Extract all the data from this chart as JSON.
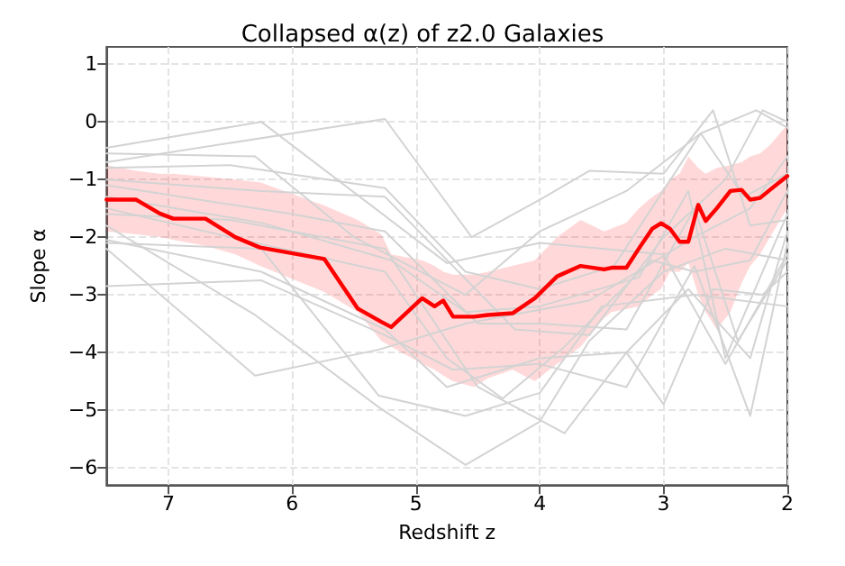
{
  "chart_data": {
    "type": "line",
    "title": "Collapsed α(z) of z2.0 Galaxies",
    "xlabel": "Redshift z",
    "ylabel": "Slope α",
    "xlim": [
      7.5,
      2
    ],
    "xticks": [
      7,
      6,
      5,
      4,
      3,
      2
    ],
    "ylim": [
      -6.3,
      1.3
    ],
    "yticks": [
      1,
      0,
      -1,
      -2,
      -3,
      -4,
      -5,
      -6
    ],
    "grid": true,
    "marker": "none",
    "line_style": "solid",
    "series": [
      {
        "color": "#d3d3d3",
        "x": [
          7.5,
          6.25,
          4.75,
          4.0,
          3.0,
          2.5,
          2.0
        ],
        "values": [
          -0.45,
          0,
          -2.45,
          -2.1,
          -2.3,
          -4.2,
          -2.3
        ]
      },
      {
        "color": "#d3d3d3",
        "x": [
          7.5,
          5.25,
          4.55,
          4.0,
          3.6,
          3.0,
          2.6,
          2.3,
          2.0
        ],
        "values": [
          -0.7,
          0.05,
          -2.0,
          -1.35,
          -0.85,
          -0.9,
          0.2,
          -1.8,
          -1.7
        ]
      },
      {
        "color": "#d3d3d3",
        "x": [
          7.5,
          6.3,
          5.5,
          4.6,
          4.0,
          3.3,
          2.7,
          2.35,
          2.0
        ],
        "values": [
          -0.55,
          -0.6,
          -2.0,
          -3.0,
          -1.9,
          -1.2,
          -0.2,
          -1.3,
          -0.9
        ]
      },
      {
        "color": "#d3d3d3",
        "x": [
          7.5,
          6.5,
          5.25,
          4.6,
          4.0,
          3.4,
          2.7,
          2.25,
          2.0
        ],
        "values": [
          -0.8,
          -0.75,
          -1.15,
          -2.6,
          -2.9,
          -2.5,
          -0.2,
          0.2,
          -0.1
        ]
      },
      {
        "color": "#d3d3d3",
        "x": [
          7.5,
          6.25,
          5.25,
          4.2,
          3.6,
          3.0,
          2.5,
          2.2,
          2.0
        ],
        "values": [
          -1.0,
          -1.2,
          -1.3,
          -3.6,
          -3.7,
          -2.0,
          -1.0,
          0.2,
          0
        ]
      },
      {
        "color": "#d3d3d3",
        "x": [
          7.5,
          6.0,
          5.25,
          4.5,
          4.0,
          3.3,
          2.75,
          2.4,
          2.0
        ],
        "values": [
          -1.1,
          -1.6,
          -1.9,
          -3.5,
          -3.5,
          -3.6,
          -1.5,
          -3.8,
          -2.4
        ]
      },
      {
        "color": "#d3d3d3",
        "x": [
          7.5,
          6.25,
          5.2,
          4.6,
          4.0,
          3.2,
          2.8,
          2.5,
          2.0
        ],
        "values": [
          -1.3,
          -1.75,
          -2.4,
          -3.3,
          -3.2,
          -2.7,
          -1.2,
          -4.1,
          -1.6
        ]
      },
      {
        "color": "#d3d3d3",
        "x": [
          7.5,
          6.5,
          5.25,
          4.75,
          4.3,
          3.8,
          3.1,
          2.75,
          2.3,
          2.0
        ],
        "values": [
          -1.5,
          -2.0,
          -2.6,
          -4.1,
          -4.8,
          -3.9,
          -2.4,
          -2.6,
          -2.4,
          -1.2
        ]
      },
      {
        "color": "#d3d3d3",
        "x": [
          7.5,
          6.25,
          5.25,
          4.75,
          4.0,
          3.3,
          3.0,
          2.6,
          2.2,
          2.0
        ],
        "values": [
          -2.05,
          -2.6,
          -3.6,
          -4.6,
          -4.1,
          -4.0,
          -4.9,
          -2.9,
          -3.0,
          -2.6
        ]
      },
      {
        "color": "#d3d3d3",
        "x": [
          7.5,
          6.3,
          5.3,
          4.6,
          3.6,
          2.75,
          2.3,
          2.0
        ],
        "values": [
          -2.2,
          -4.4,
          -3.95,
          -3.5,
          -3.1,
          -2.0,
          -1.5,
          -0.6
        ]
      },
      {
        "color": "#d3d3d3",
        "x": [
          7.5,
          6.25,
          5.25,
          4.7,
          4.0,
          3.3,
          2.75,
          2.3,
          2.0
        ],
        "values": [
          -2.85,
          -2.75,
          -3.7,
          -4.3,
          -4.2,
          -4.6,
          -2.5,
          -5.1,
          -2.1
        ]
      },
      {
        "color": "#d3d3d3",
        "x": [
          7.5,
          6.3,
          5.3,
          4.6,
          4.0,
          3.6,
          3.0,
          2.5,
          2.0
        ],
        "values": [
          -1.8,
          -3.35,
          -4.95,
          -5.95,
          -5.2,
          -3.8,
          -2.6,
          -2.2,
          -2.4
        ]
      },
      {
        "color": "#d3d3d3",
        "x": [
          7.5,
          6.5,
          5.25,
          4.5,
          3.8,
          3.3,
          2.8,
          2.3,
          2.0
        ],
        "values": [
          -1.6,
          -1.7,
          -2.2,
          -4.6,
          -5.4,
          -4.0,
          -2.9,
          -4.1,
          -1.9
        ]
      },
      {
        "color": "#d3d3d3",
        "x": [
          7.5,
          6.25,
          5.3,
          4.6,
          4.0,
          3.5,
          2.75,
          2.0
        ],
        "values": [
          -2.1,
          -2.2,
          -4.75,
          -5.1,
          -4.7,
          -3.2,
          -3.0,
          -3.2
        ]
      },
      {
        "color": "#ff0000",
        "x": [
          7.5,
          7.26,
          7.07,
          6.96,
          6.7,
          6.46,
          6.26,
          5.74,
          5.47,
          5.28,
          5.2,
          4.95,
          4.85,
          4.78,
          4.7,
          4.53,
          4.42,
          4.22,
          4.04,
          3.86,
          3.67,
          3.48,
          3.42,
          3.3,
          3.2,
          3.09,
          3.02,
          2.95,
          2.87,
          2.8,
          2.72,
          2.66,
          2.57,
          2.46,
          2.37,
          2.3,
          2.22,
          2.14,
          2.0
        ],
        "values": [
          -1.35,
          -1.35,
          -1.59,
          -1.68,
          -1.68,
          -2.0,
          -2.18,
          -2.38,
          -3.24,
          -3.47,
          -3.56,
          -3.06,
          -3.2,
          -3.1,
          -3.38,
          -3.38,
          -3.35,
          -3.32,
          -3.06,
          -2.68,
          -2.5,
          -2.56,
          -2.53,
          -2.53,
          -2.2,
          -1.85,
          -1.76,
          -1.85,
          -2.08,
          -2.08,
          -1.44,
          -1.72,
          -1.5,
          -1.2,
          -1.18,
          -1.35,
          -1.32,
          -1.18,
          -0.94
        ],
        "upper": [
          -0.75,
          -0.85,
          -0.9,
          -0.9,
          -0.95,
          -1.0,
          -1.05,
          -1.45,
          -1.7,
          -1.95,
          -2.3,
          -2.4,
          -2.5,
          -2.6,
          -2.65,
          -2.65,
          -2.6,
          -2.5,
          -2.4,
          -2.0,
          -1.7,
          -1.9,
          -1.85,
          -1.75,
          -1.5,
          -1.3,
          -1.2,
          -1.0,
          -0.9,
          -0.6,
          -0.8,
          -0.9,
          -0.8,
          -0.75,
          -0.7,
          -0.6,
          -0.55,
          -0.4,
          -0.05
        ],
        "lower": [
          -1.9,
          -1.95,
          -2.0,
          -2.05,
          -2.15,
          -2.3,
          -2.5,
          -2.95,
          -3.3,
          -3.8,
          -3.9,
          -4.2,
          -4.3,
          -4.4,
          -4.5,
          -4.6,
          -4.45,
          -4.3,
          -4.5,
          -4.2,
          -3.9,
          -3.4,
          -3.3,
          -3.25,
          -3.2,
          -3.0,
          -2.9,
          -2.6,
          -2.6,
          -2.45,
          -3.0,
          -3.3,
          -3.6,
          -3.3,
          -2.8,
          -2.5,
          -2.3,
          -2.0,
          -1.5
        ]
      }
    ]
  }
}
